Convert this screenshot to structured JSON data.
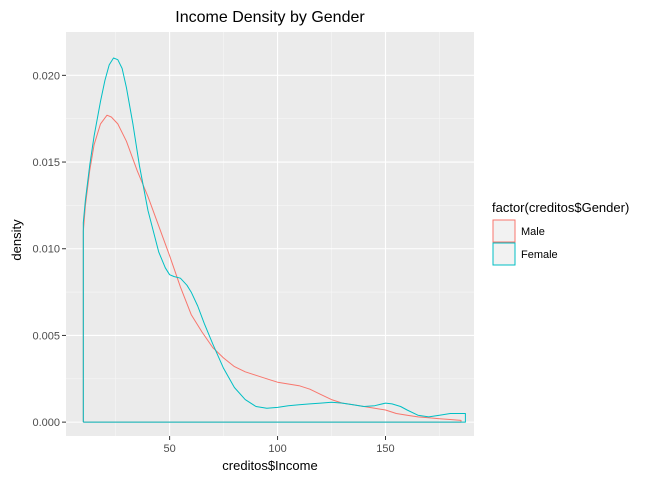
{
  "chart_data": {
    "type": "line",
    "title": "Income Density by Gender",
    "xlabel": "creditos$Income",
    "ylabel": "density",
    "xlim": [
      2,
      191
    ],
    "ylim": [
      -0.0008,
      0.0225
    ],
    "x_ticks": [
      50,
      100,
      150
    ],
    "x_tick_labels": [
      "50",
      "100",
      "150"
    ],
    "y_ticks": [
      0.0,
      0.005,
      0.01,
      0.015,
      0.02
    ],
    "y_tick_labels": [
      "0.000",
      "0.005",
      "0.010",
      "0.015",
      "0.020"
    ],
    "grid": true,
    "legend": {
      "title": "factor(creditos$Gender)",
      "position": "right",
      "entries": [
        "Male",
        "Female"
      ]
    },
    "series": [
      {
        "name": "Male",
        "color": "#F8766D",
        "x": [
          10,
          10,
          11,
          13,
          15,
          18,
          21,
          23,
          26,
          30,
          35,
          40,
          45,
          50,
          55,
          60,
          65,
          70,
          75,
          80,
          85,
          90,
          95,
          100,
          105,
          110,
          115,
          120,
          125,
          130,
          135,
          140,
          145,
          150,
          155,
          160,
          165,
          170,
          175,
          180,
          185,
          185,
          10
        ],
        "y": [
          0.0,
          0.011,
          0.0125,
          0.0145,
          0.016,
          0.0172,
          0.0177,
          0.0176,
          0.0172,
          0.0162,
          0.0145,
          0.013,
          0.0113,
          0.0096,
          0.0078,
          0.0062,
          0.0052,
          0.0043,
          0.0037,
          0.0032,
          0.0029,
          0.0027,
          0.0025,
          0.0023,
          0.0022,
          0.0021,
          0.0019,
          0.0016,
          0.0013,
          0.0011,
          0.001,
          0.0009,
          0.0008,
          0.0007,
          0.0005,
          0.0004,
          0.0003,
          0.00025,
          0.0002,
          0.00015,
          0.0001,
          0.0,
          0.0
        ]
      },
      {
        "name": "Female",
        "color": "#00BFC4",
        "x": [
          10,
          10,
          11,
          13,
          15,
          18,
          20,
          22,
          24,
          26,
          28,
          30,
          33,
          36,
          40,
          45,
          48,
          50,
          52,
          55,
          58,
          60,
          63,
          66,
          70,
          75,
          80,
          85,
          90,
          95,
          100,
          105,
          110,
          115,
          120,
          125,
          130,
          135,
          140,
          145,
          150,
          153,
          157,
          160,
          165,
          170,
          175,
          180,
          187,
          187,
          10
        ],
        "y": [
          0.0,
          0.0115,
          0.0128,
          0.0148,
          0.0165,
          0.0185,
          0.0197,
          0.0206,
          0.021,
          0.0209,
          0.0204,
          0.0193,
          0.0172,
          0.0148,
          0.0122,
          0.0098,
          0.0089,
          0.0085,
          0.0084,
          0.0083,
          0.0079,
          0.0075,
          0.0067,
          0.0057,
          0.0045,
          0.0031,
          0.002,
          0.0013,
          0.0009,
          0.0008,
          0.00085,
          0.00095,
          0.001,
          0.00105,
          0.0011,
          0.00115,
          0.0011,
          0.001,
          0.0009,
          0.00095,
          0.0011,
          0.00105,
          0.0009,
          0.0007,
          0.0004,
          0.0003,
          0.0004,
          0.0005,
          0.0005,
          0.0,
          0.0
        ]
      }
    ]
  }
}
